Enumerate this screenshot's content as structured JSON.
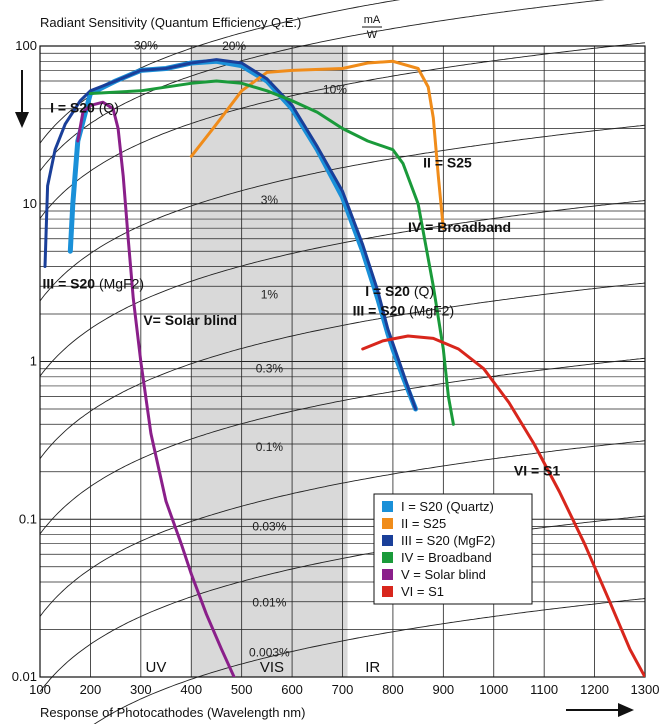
{
  "chart_data": {
    "type": "line",
    "title": "Radiant Sensitivity (Quantum Efficiency Q.E.)",
    "title_unit_num": "mA",
    "title_unit_den": "W",
    "xlabel": "Response of Photocathodes (Wavelength nm)",
    "x_scale": "linear",
    "y_scale": "log",
    "xlim": [
      100,
      1300
    ],
    "ylim": [
      0.01,
      100
    ],
    "x_ticks": [
      "100",
      "200",
      "300",
      "400",
      "500",
      "600",
      "700",
      "800",
      "900",
      "1000",
      "1100",
      "1200",
      "1300"
    ],
    "y_ticks": [
      {
        "v": 100,
        "label": "100"
      },
      {
        "v": 10,
        "label": "10"
      },
      {
        "v": 1,
        "label": "1"
      },
      {
        "v": 0.1,
        "label": "0.1"
      },
      {
        "v": 0.01,
        "label": "0.01"
      }
    ],
    "grid": true,
    "visible_band": {
      "from": 400,
      "to": 710,
      "color": "#d9d9d9"
    },
    "band_labels": [
      {
        "text": "UV",
        "x": 330
      },
      {
        "text": "VIS",
        "x": 560
      },
      {
        "text": "IR",
        "x": 760
      }
    ],
    "qe_lines": [
      "30%",
      "20%",
      "10%",
      "3%",
      "1%",
      "0.3%",
      "0.1%",
      "0.03%",
      "0.01%",
      "0.003%"
    ],
    "qe_label_positions": [
      {
        "text": "30%",
        "x": 310,
        "y": 95
      },
      {
        "text": "20%",
        "x": 485,
        "y": 94
      },
      {
        "text": "10%",
        "x": 685,
        "y": 50
      },
      {
        "text": "3%",
        "x": 555,
        "y": 10
      },
      {
        "text": "1%",
        "x": 555,
        "y": 2.5
      },
      {
        "text": "0.3%",
        "x": 555,
        "y": 0.85
      },
      {
        "text": "0.1%",
        "x": 555,
        "y": 0.27
      },
      {
        "text": "0.03%",
        "x": 555,
        "y": 0.085
      },
      {
        "text": "0.01%",
        "x": 555,
        "y": 0.028
      },
      {
        "text": "0.003%",
        "x": 555,
        "y": 0.0135
      }
    ],
    "series": [
      {
        "name": "I = S20 (Quartz)",
        "color": "#1a90d8",
        "width": 5,
        "points": [
          [
            160,
            5
          ],
          [
            165,
            10
          ],
          [
            175,
            25
          ],
          [
            200,
            50
          ],
          [
            250,
            60
          ],
          [
            300,
            70
          ],
          [
            350,
            72
          ],
          [
            400,
            78
          ],
          [
            450,
            80
          ],
          [
            500,
            75
          ],
          [
            550,
            60
          ],
          [
            600,
            40
          ],
          [
            650,
            22
          ],
          [
            700,
            11
          ],
          [
            740,
            5
          ],
          [
            770,
            2.5
          ],
          [
            790,
            1.5
          ],
          [
            800,
            1.2
          ],
          [
            820,
            0.8
          ],
          [
            845,
            0.5
          ]
        ]
      },
      {
        "name": "II = S25",
        "color": "#f08c1a",
        "width": 3,
        "points": [
          [
            400,
            20
          ],
          [
            450,
            32
          ],
          [
            500,
            52
          ],
          [
            550,
            68
          ],
          [
            600,
            70
          ],
          [
            700,
            72
          ],
          [
            750,
            78
          ],
          [
            800,
            80
          ],
          [
            850,
            72
          ],
          [
            870,
            55
          ],
          [
            880,
            35
          ],
          [
            890,
            15
          ],
          [
            900,
            7
          ]
        ]
      },
      {
        "name": "III = S20 (MgF2)",
        "color": "#1a3f99",
        "width": 3,
        "points": [
          [
            110,
            4
          ],
          [
            115,
            13
          ],
          [
            130,
            22
          ],
          [
            150,
            32
          ],
          [
            180,
            45
          ],
          [
            200,
            52
          ],
          [
            250,
            60
          ],
          [
            300,
            70
          ],
          [
            350,
            72
          ],
          [
            400,
            78
          ],
          [
            450,
            82
          ],
          [
            500,
            78
          ],
          [
            550,
            62
          ],
          [
            600,
            42
          ],
          [
            650,
            23
          ],
          [
            700,
            12
          ],
          [
            740,
            5.5
          ],
          [
            770,
            2.8
          ],
          [
            790,
            1.6
          ],
          [
            800,
            1.3
          ],
          [
            820,
            0.85
          ],
          [
            845,
            0.5
          ]
        ]
      },
      {
        "name": "IV = Broadband",
        "color": "#1a9a3a",
        "width": 3,
        "points": [
          [
            200,
            50
          ],
          [
            300,
            52
          ],
          [
            400,
            58
          ],
          [
            450,
            60
          ],
          [
            500,
            58
          ],
          [
            550,
            52
          ],
          [
            600,
            45
          ],
          [
            650,
            38
          ],
          [
            700,
            30
          ],
          [
            750,
            25
          ],
          [
            800,
            22
          ],
          [
            820,
            18
          ],
          [
            850,
            10
          ],
          [
            880,
            3
          ],
          [
            900,
            1.2
          ],
          [
            910,
            0.6
          ],
          [
            920,
            0.4
          ]
        ]
      },
      {
        "name": "V = Solar blind",
        "color": "#8a1f8a",
        "width": 3,
        "points": [
          [
            175,
            25
          ],
          [
            185,
            38
          ],
          [
            200,
            42
          ],
          [
            225,
            44
          ],
          [
            245,
            40
          ],
          [
            255,
            30
          ],
          [
            265,
            15
          ],
          [
            275,
            6
          ],
          [
            285,
            2.5
          ],
          [
            300,
            1
          ],
          [
            320,
            0.35
          ],
          [
            350,
            0.13
          ],
          [
            380,
            0.07
          ],
          [
            400,
            0.045
          ],
          [
            430,
            0.025
          ],
          [
            460,
            0.015
          ],
          [
            485,
            0.01
          ]
        ]
      },
      {
        "name": "VI = S1",
        "color": "#d8261c",
        "width": 3,
        "points": [
          [
            740,
            1.2
          ],
          [
            780,
            1.35
          ],
          [
            830,
            1.45
          ],
          [
            880,
            1.4
          ],
          [
            930,
            1.2
          ],
          [
            980,
            0.9
          ],
          [
            1030,
            0.55
          ],
          [
            1080,
            0.3
          ],
          [
            1130,
            0.15
          ],
          [
            1180,
            0.07
          ],
          [
            1230,
            0.03
          ],
          [
            1270,
            0.015
          ],
          [
            1300,
            0.01
          ]
        ]
      }
    ],
    "curve_labels": [
      {
        "bold": "I = S20",
        "rest": " (Q)",
        "x": 120,
        "y": 38
      },
      {
        "bold": "II = S25",
        "rest": "",
        "x": 860,
        "y": 17
      },
      {
        "bold": "IV = Broadband",
        "rest": "",
        "x": 830,
        "y": 6.6
      },
      {
        "bold": "III = S20",
        "rest": " (MgF2)",
        "x": 105,
        "y": 2.9
      },
      {
        "bold": "V= Solar blind",
        "rest": "",
        "x": 305,
        "y": 1.7
      },
      {
        "bold": "I = S20",
        "rest": " (Q)",
        "x": 745,
        "y": 2.6
      },
      {
        "bold": "III = S20",
        "rest": " (MgF2)",
        "x": 720,
        "y": 1.95
      },
      {
        "bold": "VI = S1",
        "rest": "",
        "x": 1040,
        "y": 0.19
      }
    ],
    "legend": {
      "position": "lower-center-right",
      "items": [
        {
          "label": "I = S20 (Quartz)",
          "color": "#1a90d8"
        },
        {
          "label": "II = S25",
          "color": "#f08c1a"
        },
        {
          "label": "III = S20 (MgF2)",
          "color": "#1a3f99"
        },
        {
          "label": "IV = Broadband",
          "color": "#1a9a3a"
        },
        {
          "label": "V = Solar blind",
          "color": "#8a1f8a"
        },
        {
          "label": "VI = S1",
          "color": "#d8261c"
        }
      ]
    }
  }
}
